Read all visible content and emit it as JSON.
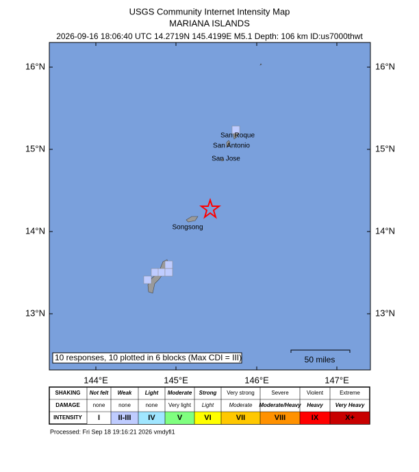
{
  "header": {
    "title": "USGS Community Internet Intensity Map",
    "region": "MARIANA ISLANDS",
    "event": "2026-09-16 18:06:40 UTC 14.2719N 145.4199E M5.1 Depth: 106 km ID:us7000thwt"
  },
  "map": {
    "lat_labels": [
      "16°N",
      "15°N",
      "14°N",
      "13°N"
    ],
    "lon_labels": [
      "144°E",
      "145°E",
      "146°E",
      "147°E"
    ],
    "towns": [
      "San Roque",
      "San Antonio",
      "San Jose",
      "Songsong"
    ],
    "responses": "10 responses, 10 plotted in 6 blocks (Max CDI = III)",
    "scale": "50 miles"
  },
  "legend": {
    "row_labels": [
      "SHAKING",
      "DAMAGE",
      "INTENSITY"
    ],
    "columns": [
      {
        "shaking": "Not felt",
        "damage": "none",
        "intensity": "I",
        "color": "#ffffff"
      },
      {
        "shaking": "Weak",
        "damage": "none",
        "intensity": "II-III",
        "color": "#bfccff"
      },
      {
        "shaking": "Light",
        "damage": "none",
        "intensity": "IV",
        "color": "#a0e6ff"
      },
      {
        "shaking": "Moderate",
        "damage": "Very light",
        "intensity": "V",
        "color": "#80ff80"
      },
      {
        "shaking": "Strong",
        "damage": "Light",
        "intensity": "VI",
        "color": "#ffff00"
      },
      {
        "shaking": "Very strong",
        "damage": "Moderate",
        "intensity": "VII",
        "color": "#ffc800"
      },
      {
        "shaking": "Severe",
        "damage": "Moderate/Heavy",
        "intensity": "VIII",
        "color": "#ff9100"
      },
      {
        "shaking": "Violent",
        "damage": "Heavy",
        "intensity": "IX",
        "color": "#ff0000"
      },
      {
        "shaking": "Extreme",
        "damage": "Very Heavy",
        "intensity": "X+",
        "color": "#c80000"
      }
    ]
  },
  "footer": "Processed: Fri Sep 18 19:16:21 2026 vmdyfi1"
}
